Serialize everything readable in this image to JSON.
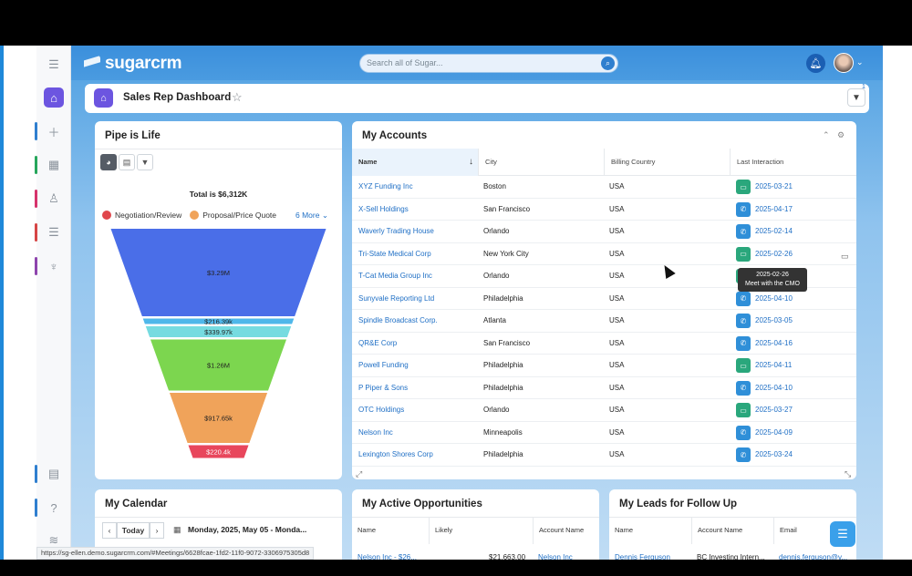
{
  "app": {
    "logo_text": "sugarcrm",
    "search_placeholder": "Search all of Sugar..."
  },
  "dashboard": {
    "title": "Sales Rep Dashboard",
    "filter_badge": "1"
  },
  "pipe": {
    "title": "Pipe is Life",
    "total": "Total is $6,312K",
    "legend": [
      {
        "label": "Negotiation/Review",
        "color": "#e0474c"
      },
      {
        "label": "Proposal/Price Quote",
        "color": "#f0a35a"
      }
    ],
    "more": "6 More",
    "stages": [
      {
        "value": 3.29,
        "label": "$3.29M",
        "color": "#4a6ee8"
      },
      {
        "value": 0.21639,
        "label": "$216.39k",
        "color": "#4fb7ea"
      },
      {
        "value": 0.33997,
        "label": "$339.97k",
        "color": "#76dbe0"
      },
      {
        "value": 1.26,
        "label": "$1.26M",
        "color": "#7cd64f"
      },
      {
        "value": 0.91765,
        "label": "$917.65k",
        "color": "#f0a35a"
      },
      {
        "value": 0.2204,
        "label": "$220.4k",
        "color": "#e8465c"
      }
    ]
  },
  "accounts": {
    "title": "My Accounts",
    "columns": [
      "Name",
      "City",
      "Billing Country",
      "Last Interaction"
    ],
    "rows": [
      {
        "name": "XYZ Funding Inc",
        "city": "Boston",
        "country": "USA",
        "type": "meeting",
        "date": "2025-03-21"
      },
      {
        "name": "X-Sell Holdings",
        "city": "San Francisco",
        "country": "USA",
        "type": "call",
        "date": "2025-04-17"
      },
      {
        "name": "Waverly Trading House",
        "city": "Orlando",
        "country": "USA",
        "type": "call",
        "date": "2025-02-14"
      },
      {
        "name": "Tri-State Medical Corp",
        "city": "New York City",
        "country": "USA",
        "type": "meeting",
        "date": "2025-02-26"
      },
      {
        "name": "T-Cat Media Group Inc",
        "city": "Orlando",
        "country": "USA",
        "type": "meeting",
        "date": ""
      },
      {
        "name": "Sunyvale Reporting Ltd",
        "city": "Philadelphia",
        "country": "USA",
        "type": "call",
        "date": "2025-04-10"
      },
      {
        "name": "Spindle Broadcast Corp.",
        "city": "Atlanta",
        "country": "USA",
        "type": "call",
        "date": "2025-03-05"
      },
      {
        "name": "QR&E Corp",
        "city": "San Francisco",
        "country": "USA",
        "type": "call",
        "date": "2025-04-16"
      },
      {
        "name": "Powell Funding",
        "city": "Philadelphia",
        "country": "USA",
        "type": "meeting",
        "date": "2025-04-11"
      },
      {
        "name": "P Piper & Sons",
        "city": "Philadelphia",
        "country": "USA",
        "type": "call",
        "date": "2025-04-10"
      },
      {
        "name": "OTC Holdings",
        "city": "Orlando",
        "country": "USA",
        "type": "meeting",
        "date": "2025-03-27"
      },
      {
        "name": "Nelson Inc",
        "city": "Minneapolis",
        "country": "USA",
        "type": "call",
        "date": "2025-04-09"
      },
      {
        "name": "Lexington Shores Corp",
        "city": "Philadelphia",
        "country": "USA",
        "type": "call",
        "date": "2025-03-24"
      }
    ],
    "tooltip": {
      "date": "2025-02-26",
      "text": "Meet with the CMO"
    }
  },
  "calendar": {
    "title": "My Calendar",
    "today": "Today",
    "range": "Monday, 2025, May 05 - Monda..."
  },
  "opportunities": {
    "title": "My Active Opportunities",
    "columns": [
      "Name",
      "Likely",
      "Account Name"
    ],
    "first_row": {
      "name": "Nelson Inc - $26...",
      "likely": "$21,663.00",
      "account": "Nelson Inc"
    }
  },
  "leads": {
    "title": "My Leads for Follow Up",
    "columns": [
      "Name",
      "Account Name",
      "Email"
    ],
    "first_row": {
      "name": "Dennis Ferguson",
      "account": "BC Investing Intern...",
      "email": "dennis.ferguson@v..."
    }
  },
  "status_url": "https://sg-ellen.demo.sugarcrm.com/#Meetings/6628fcae-1fd2-11f0-9072-3306975305d8"
}
